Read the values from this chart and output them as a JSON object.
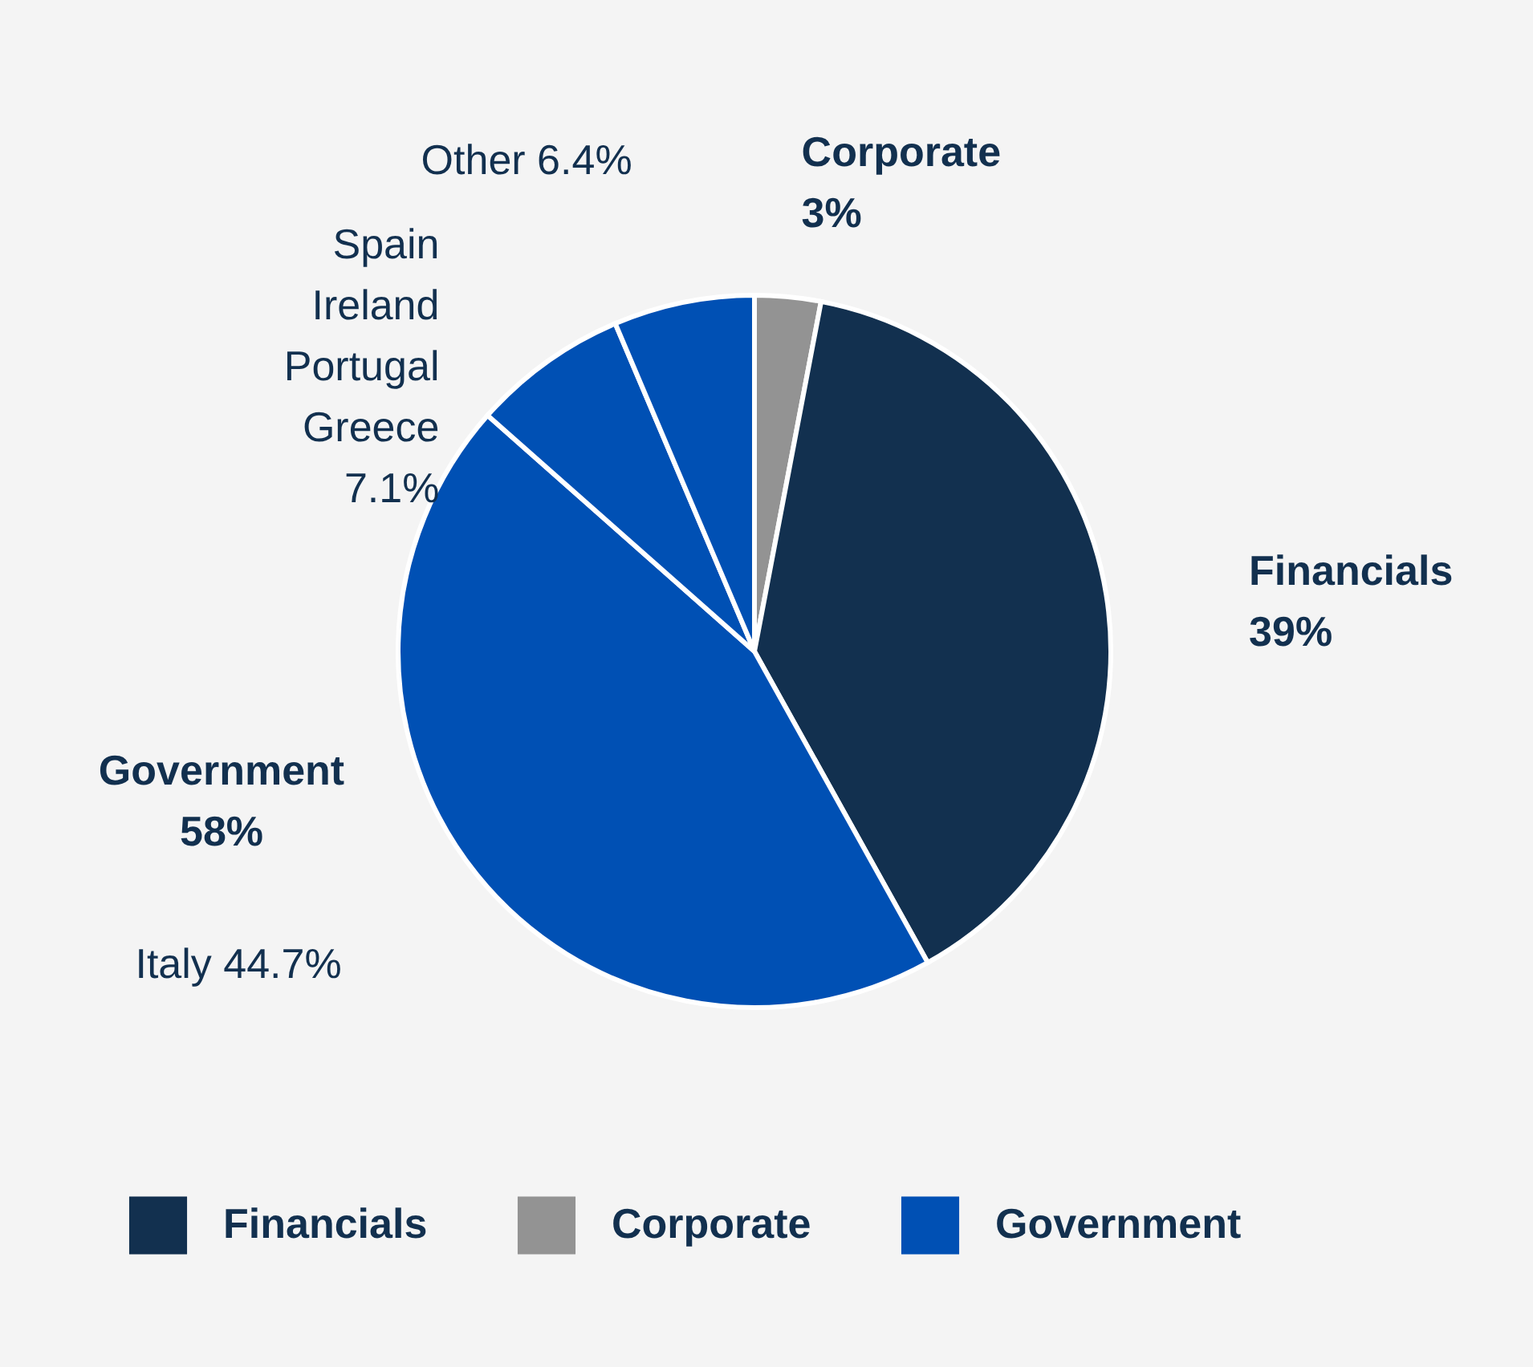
{
  "chart_data": {
    "type": "pie",
    "categories": [
      "Corporate",
      "Financials",
      "Italy",
      "Spain\nIreland\nPortugal\nGreece",
      "Other"
    ],
    "values": [
      3,
      39,
      44.7,
      7.1,
      6.4
    ],
    "colors": [
      "#939393",
      "#12304f",
      "#0050b4",
      "#0050b4",
      "#0050b4"
    ],
    "value_labels": [
      "3%",
      "39%",
      "44.7%",
      "7.1%",
      "6.4%"
    ],
    "annotations": [
      "Government",
      "58%"
    ],
    "legend": "bottom"
  }
}
